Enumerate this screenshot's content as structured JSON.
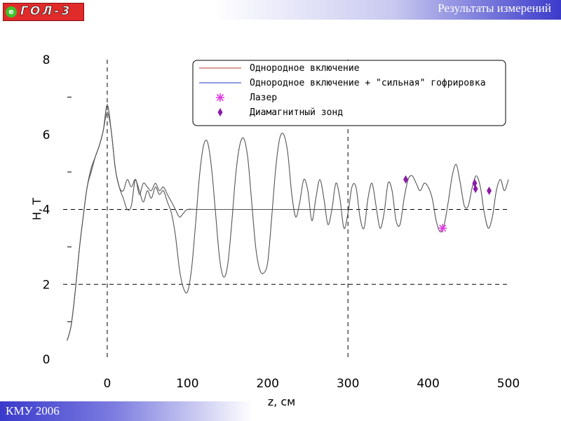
{
  "header": {
    "logo_badge": "e",
    "logo_text": "ГОЛ-3",
    "title": "Результаты измерений"
  },
  "footer": {
    "text": "КМУ 2006"
  },
  "chart_data": {
    "type": "line",
    "xlabel": "z, см",
    "ylabel": "H, Т",
    "xlim": [
      -55,
      500
    ],
    "ylim": [
      0,
      8
    ],
    "x_ticks": [
      "0",
      "100",
      "200",
      "300",
      "400",
      "500"
    ],
    "y_ticks": [
      "0",
      "2",
      "4",
      "6",
      "8"
    ],
    "grid": "dashed lines at z = 0, z = 300, H = 2, H = 4",
    "legend_position": "top-right",
    "legend": [
      "Однородное включение",
      "Однородное включение + \"сильная\" гофрировка",
      "Лазер",
      "Диамагнитный зонд"
    ],
    "series": [
      {
        "name": "Однородное включение",
        "x": [
          -50,
          -45,
          -40,
          -35,
          -30,
          -25,
          -20,
          -15,
          -10,
          -5,
          0,
          5,
          10,
          15,
          20,
          25,
          30,
          35,
          40,
          45,
          50,
          55,
          60,
          65,
          70,
          75,
          80,
          85,
          90,
          95,
          100,
          110,
          120,
          130,
          140,
          150,
          160,
          170,
          180,
          190,
          200,
          210,
          220,
          230,
          240,
          250,
          260,
          270,
          280,
          290,
          300
        ],
        "values": [
          0.5,
          0.9,
          1.8,
          2.9,
          3.8,
          4.6,
          5.1,
          5.4,
          5.7,
          6.1,
          6.8,
          6.1,
          5.1,
          4.6,
          4.3,
          4.0,
          4.1,
          4.8,
          4.4,
          4.7,
          4.6,
          4.5,
          4.7,
          4.5,
          4.6,
          4.4,
          4.2,
          4.0,
          3.8,
          3.9,
          4.0,
          4.0,
          4.0,
          4.0,
          4.0,
          4.0,
          4.0,
          4.0,
          4.0,
          4.0,
          4.0,
          4.0,
          4.0,
          4.0,
          4.0,
          4.0,
          4.0,
          4.0,
          4.0,
          4.0,
          4.0
        ]
      },
      {
        "name": "Однородное включение + \"сильная\" гофрировка",
        "x": [
          -50,
          -45,
          -40,
          -35,
          -30,
          -25,
          -20,
          -15,
          -10,
          -5,
          0,
          5,
          10,
          15,
          20,
          25,
          30,
          35,
          40,
          45,
          50,
          55,
          60,
          65,
          70,
          75,
          80,
          85,
          90,
          95,
          100,
          105,
          110,
          115,
          120,
          125,
          130,
          135,
          140,
          145,
          150,
          155,
          160,
          165,
          170,
          175,
          180,
          185,
          190,
          195,
          200,
          205,
          210,
          215,
          220,
          225,
          230,
          235,
          240,
          245,
          250,
          255,
          260,
          265,
          270,
          275,
          280,
          285,
          290,
          295,
          300,
          305,
          310,
          315,
          320,
          325,
          330,
          335,
          340,
          345,
          350,
          355,
          360,
          365,
          370,
          375,
          380,
          385,
          390,
          395,
          400,
          405,
          410,
          415,
          420,
          425,
          430,
          435,
          440,
          445,
          450,
          455,
          460,
          465,
          470,
          475,
          480,
          485,
          490,
          495,
          500
        ],
        "values": [
          0.5,
          0.9,
          1.8,
          2.9,
          3.8,
          4.6,
          5.0,
          5.4,
          5.7,
          6.1,
          6.6,
          6.1,
          5.1,
          4.6,
          4.5,
          4.8,
          4.6,
          4.8,
          4.5,
          4.2,
          4.5,
          4.3,
          4.6,
          4.4,
          4.5,
          4.2,
          3.9,
          3.3,
          2.4,
          1.9,
          1.8,
          2.4,
          3.6,
          4.9,
          5.7,
          5.8,
          5.1,
          3.9,
          2.7,
          2.2,
          2.5,
          3.6,
          4.9,
          5.7,
          5.9,
          5.4,
          4.2,
          3.0,
          2.4,
          2.3,
          2.6,
          3.8,
          5.1,
          5.9,
          6.0,
          5.5,
          4.4,
          3.8,
          4.2,
          4.8,
          4.5,
          3.7,
          4.3,
          4.8,
          4.3,
          3.6,
          4.0,
          4.7,
          4.3,
          3.5,
          3.9,
          4.6,
          4.6,
          3.8,
          3.5,
          4.3,
          4.7,
          4.1,
          3.5,
          3.9,
          4.7,
          4.5,
          3.7,
          3.6,
          4.3,
          4.8,
          4.9,
          4.7,
          4.5,
          4.7,
          4.6,
          4.3,
          3.7,
          3.4,
          3.6,
          4.2,
          4.9,
          5.2,
          4.7,
          4.1,
          4.1,
          4.6,
          4.9,
          4.6,
          3.9,
          3.5,
          3.8,
          4.5,
          4.8,
          4.5,
          4.8
        ]
      }
    ],
    "markers": [
      {
        "name": "Лазер",
        "color": "#e040e0",
        "symbol": "asterisk",
        "points": [
          {
            "x": 418,
            "y": 3.5
          }
        ]
      },
      {
        "name": "Диамагнитный зонд",
        "color": "#8b1aa8",
        "symbol": "diamond",
        "points": [
          {
            "x": 372,
            "y": 4.8
          },
          {
            "x": 458,
            "y": 4.7
          },
          {
            "x": 459,
            "y": 4.55
          },
          {
            "x": 476,
            "y": 4.5
          }
        ]
      }
    ],
    "colors": {
      "series1": "#c0392b",
      "series2": "#1f3fbf",
      "curve_render": "#555555",
      "laser": "#e040e0",
      "probe": "#8b1aa8"
    }
  }
}
